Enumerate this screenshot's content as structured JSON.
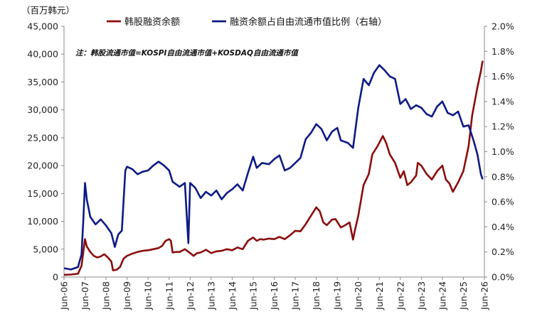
{
  "chart_data": {
    "type": "line",
    "y_unit_label": "（百万韩元）",
    "note": "注：韩股流通市值=KOSPI自由流通市值+KOSDAQ自由流通市值",
    "x_ticks": [
      "Jun-06",
      "Jun-07",
      "Jun-08",
      "Jun-09",
      "Jun-10",
      "Jun-11",
      "Jun-12",
      "Jun-13",
      "Jun-14",
      "Jun-15",
      "Jun-16",
      "Jun-17",
      "Jun-18",
      "Jun-19",
      "Jun-20",
      "Jun-21",
      "Jun-22",
      "Jun-23",
      "Jun-24",
      "Jun-25",
      "Jun-26"
    ],
    "y_left": {
      "min": 0,
      "max": 45000,
      "step": 5000,
      "tick_labels": [
        "0",
        "5,000",
        "10,000",
        "15,000",
        "20,000",
        "25,000",
        "30,000",
        "35,000",
        "40,000",
        "45,000"
      ]
    },
    "y_right": {
      "min": 0,
      "max": 0.02,
      "step": 0.002,
      "tick_labels": [
        "0.0%",
        "0.2%",
        "0.4%",
        "0.6%",
        "0.8%",
        "1.0%",
        "1.2%",
        "1.4%",
        "1.6%",
        "1.8%",
        "2.0%"
      ]
    },
    "grid": false,
    "legend_position": "top",
    "series": [
      {
        "name": "韩股融资余额",
        "axis": "left",
        "color": "#8b0d0d",
        "points": [
          [
            "2006-06",
            400
          ],
          [
            "2006-10",
            450
          ],
          [
            "2007-02",
            600
          ],
          [
            "2007-04",
            2000
          ],
          [
            "2007-06",
            6800
          ],
          [
            "2007-07",
            5500
          ],
          [
            "2007-09",
            4500
          ],
          [
            "2007-11",
            3800
          ],
          [
            "2008-01",
            3500
          ],
          [
            "2008-03",
            3700
          ],
          [
            "2008-05",
            4100
          ],
          [
            "2008-07",
            3500
          ],
          [
            "2008-09",
            2800
          ],
          [
            "2008-10",
            1200
          ],
          [
            "2008-12",
            1300
          ],
          [
            "2009-02",
            1800
          ],
          [
            "2009-04",
            3300
          ],
          [
            "2009-06",
            3800
          ],
          [
            "2009-09",
            4200
          ],
          [
            "2009-12",
            4500
          ],
          [
            "2010-03",
            4700
          ],
          [
            "2010-06",
            4800
          ],
          [
            "2010-09",
            5000
          ],
          [
            "2010-12",
            5200
          ],
          [
            "2011-02",
            5600
          ],
          [
            "2011-04",
            6500
          ],
          [
            "2011-06",
            6800
          ],
          [
            "2011-07",
            6500
          ],
          [
            "2011-08",
            4400
          ],
          [
            "2011-10",
            4500
          ],
          [
            "2011-12",
            4500
          ],
          [
            "2012-03",
            5000
          ],
          [
            "2012-06",
            4300
          ],
          [
            "2012-08",
            3800
          ],
          [
            "2012-10",
            4300
          ],
          [
            "2012-12",
            4400
          ],
          [
            "2013-03",
            4900
          ],
          [
            "2013-06",
            4300
          ],
          [
            "2013-09",
            4600
          ],
          [
            "2013-12",
            4700
          ],
          [
            "2014-03",
            5000
          ],
          [
            "2014-06",
            4800
          ],
          [
            "2014-09",
            5300
          ],
          [
            "2014-12",
            5000
          ],
          [
            "2015-03",
            6500
          ],
          [
            "2015-06",
            7100
          ],
          [
            "2015-08",
            6500
          ],
          [
            "2015-10",
            6800
          ],
          [
            "2015-12",
            6700
          ],
          [
            "2016-03",
            6900
          ],
          [
            "2016-06",
            6800
          ],
          [
            "2016-09",
            7200
          ],
          [
            "2016-12",
            6800
          ],
          [
            "2017-03",
            7500
          ],
          [
            "2017-06",
            8300
          ],
          [
            "2017-09",
            8200
          ],
          [
            "2017-12",
            9500
          ],
          [
            "2018-03",
            11000
          ],
          [
            "2018-06",
            12500
          ],
          [
            "2018-08",
            11800
          ],
          [
            "2018-10",
            9800
          ],
          [
            "2018-12",
            9300
          ],
          [
            "2019-03",
            10300
          ],
          [
            "2019-05",
            10400
          ],
          [
            "2019-08",
            8900
          ],
          [
            "2019-10",
            9200
          ],
          [
            "2020-01",
            9800
          ],
          [
            "2020-03",
            6700
          ],
          [
            "2020-04",
            8300
          ],
          [
            "2020-06",
            11000
          ],
          [
            "2020-09",
            16500
          ],
          [
            "2020-12",
            18500
          ],
          [
            "2021-02",
            22000
          ],
          [
            "2021-05",
            23500
          ],
          [
            "2021-08",
            25300
          ],
          [
            "2021-10",
            24000
          ],
          [
            "2021-12",
            22000
          ],
          [
            "2022-03",
            20500
          ],
          [
            "2022-06",
            17800
          ],
          [
            "2022-08",
            19000
          ],
          [
            "2022-10",
            16500
          ],
          [
            "2022-12",
            17000
          ],
          [
            "2023-03",
            18200
          ],
          [
            "2023-04",
            20500
          ],
          [
            "2023-06",
            20000
          ],
          [
            "2023-09",
            18500
          ],
          [
            "2023-12",
            17500
          ],
          [
            "2024-03",
            19000
          ],
          [
            "2024-06",
            20000
          ],
          [
            "2024-08",
            17500
          ],
          [
            "2024-10",
            16800
          ],
          [
            "2024-12",
            15300
          ],
          [
            "2025-03",
            17000
          ],
          [
            "2025-06",
            19000
          ],
          [
            "2025-09",
            23500
          ],
          [
            "2025-11",
            29000
          ],
          [
            "2026-02",
            34000
          ],
          [
            "2026-04",
            37000
          ],
          [
            "2026-05",
            38800
          ]
        ]
      },
      {
        "name": "融资余额占自由流通市值比例（右轴）",
        "axis": "right",
        "color": "#0d1a85",
        "points": [
          [
            "2006-06",
            0.0007
          ],
          [
            "2006-10",
            0.0006
          ],
          [
            "2007-02",
            0.0008
          ],
          [
            "2007-04",
            0.0018
          ],
          [
            "2007-05",
            0.0045
          ],
          [
            "2007-06",
            0.0075
          ],
          [
            "2007-07",
            0.0062
          ],
          [
            "2007-09",
            0.0048
          ],
          [
            "2007-12",
            0.0042
          ],
          [
            "2008-03",
            0.0046
          ],
          [
            "2008-06",
            0.0041
          ],
          [
            "2008-09",
            0.0035
          ],
          [
            "2008-11",
            0.0024
          ],
          [
            "2009-01",
            0.0034
          ],
          [
            "2009-03",
            0.0037
          ],
          [
            "2009-05",
            0.0085
          ],
          [
            "2009-06",
            0.0088
          ],
          [
            "2009-09",
            0.0086
          ],
          [
            "2009-12",
            0.0082
          ],
          [
            "2010-03",
            0.0084
          ],
          [
            "2010-06",
            0.0085
          ],
          [
            "2010-09",
            0.0089
          ],
          [
            "2010-12",
            0.0092
          ],
          [
            "2011-03",
            0.0089
          ],
          [
            "2011-06",
            0.0085
          ],
          [
            "2011-08",
            0.0076
          ],
          [
            "2011-12",
            0.0072
          ],
          [
            "2012-03",
            0.0075
          ],
          [
            "2012-05",
            0.0027
          ],
          [
            "2012-06",
            0.0075
          ],
          [
            "2012-09",
            0.0071
          ],
          [
            "2012-12",
            0.0063
          ],
          [
            "2013-03",
            0.0068
          ],
          [
            "2013-06",
            0.0065
          ],
          [
            "2013-09",
            0.0069
          ],
          [
            "2013-12",
            0.0062
          ],
          [
            "2014-03",
            0.0067
          ],
          [
            "2014-06",
            0.007
          ],
          [
            "2014-09",
            0.0074
          ],
          [
            "2014-12",
            0.0069
          ],
          [
            "2015-03",
            0.0083
          ],
          [
            "2015-06",
            0.0096
          ],
          [
            "2015-08",
            0.0087
          ],
          [
            "2015-11",
            0.0091
          ],
          [
            "2016-03",
            0.009
          ],
          [
            "2016-06",
            0.0094
          ],
          [
            "2016-09",
            0.0097
          ],
          [
            "2016-12",
            0.0085
          ],
          [
            "2017-03",
            0.0087
          ],
          [
            "2017-06",
            0.0091
          ],
          [
            "2017-09",
            0.0095
          ],
          [
            "2017-12",
            0.011
          ],
          [
            "2018-03",
            0.0115
          ],
          [
            "2018-06",
            0.0122
          ],
          [
            "2018-09",
            0.0118
          ],
          [
            "2018-12",
            0.0109
          ],
          [
            "2019-03",
            0.0116
          ],
          [
            "2019-06",
            0.0119
          ],
          [
            "2019-08",
            0.0109
          ],
          [
            "2019-12",
            0.0107
          ],
          [
            "2020-03",
            0.0103
          ],
          [
            "2020-06",
            0.0135
          ],
          [
            "2020-09",
            0.0158
          ],
          [
            "2020-12",
            0.0153
          ],
          [
            "2021-03",
            0.0163
          ],
          [
            "2021-06",
            0.0169
          ],
          [
            "2021-09",
            0.0165
          ],
          [
            "2021-12",
            0.016
          ],
          [
            "2022-03",
            0.0158
          ],
          [
            "2022-06",
            0.0138
          ],
          [
            "2022-09",
            0.0142
          ],
          [
            "2022-12",
            0.0134
          ],
          [
            "2023-03",
            0.0137
          ],
          [
            "2023-06",
            0.0135
          ],
          [
            "2023-09",
            0.013
          ],
          [
            "2023-12",
            0.0128
          ],
          [
            "2024-03",
            0.0136
          ],
          [
            "2024-06",
            0.014
          ],
          [
            "2024-09",
            0.0131
          ],
          [
            "2024-12",
            0.0129
          ],
          [
            "2025-03",
            0.0132
          ],
          [
            "2025-06",
            0.012
          ],
          [
            "2025-09",
            0.0121
          ],
          [
            "2025-12",
            0.0108
          ],
          [
            "2026-02",
            0.0098
          ],
          [
            "2026-04",
            0.0082
          ],
          [
            "2026-05",
            0.0078
          ]
        ]
      }
    ]
  }
}
